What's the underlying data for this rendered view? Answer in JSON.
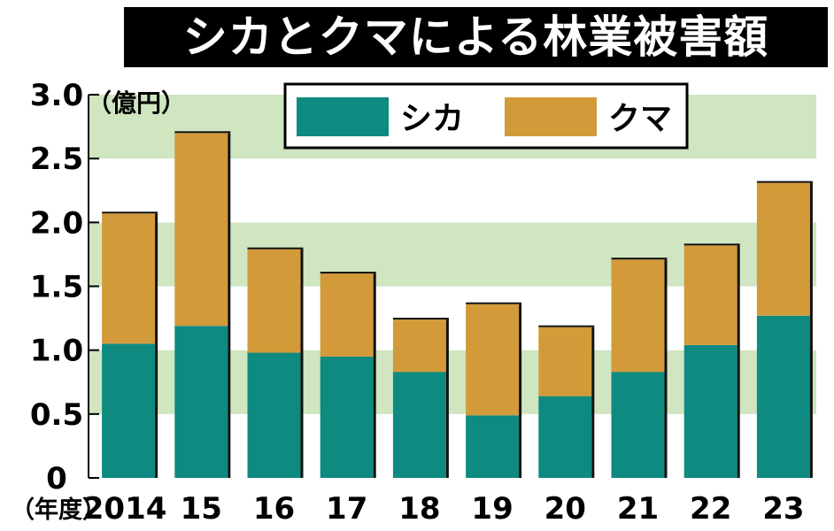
{
  "chart_data": {
    "type": "bar",
    "stacked": true,
    "title": "シカとクマによる林業被害額",
    "unit": "（億円）",
    "xlabel": "（年度）",
    "categories": [
      "2014",
      "15",
      "16",
      "17",
      "18",
      "19",
      "20",
      "21",
      "22",
      "23"
    ],
    "series": [
      {
        "name": "シカ",
        "color": "#0e8a80",
        "values": [
          1.05,
          1.19,
          0.98,
          0.95,
          0.83,
          0.49,
          0.64,
          0.83,
          1.04,
          1.27
        ]
      },
      {
        "name": "クマ",
        "color": "#d39a3a",
        "values": [
          1.02,
          1.51,
          0.81,
          0.65,
          0.41,
          0.87,
          0.54,
          0.88,
          0.78,
          1.04
        ]
      }
    ],
    "ylim": [
      0,
      3.0
    ],
    "yticks": [
      "0",
      "0.5",
      "1.0",
      "1.5",
      "2.0",
      "2.5",
      "3.0"
    ],
    "legend": "top",
    "grid": "alternating bands",
    "band_color": "#cfe6c0"
  }
}
